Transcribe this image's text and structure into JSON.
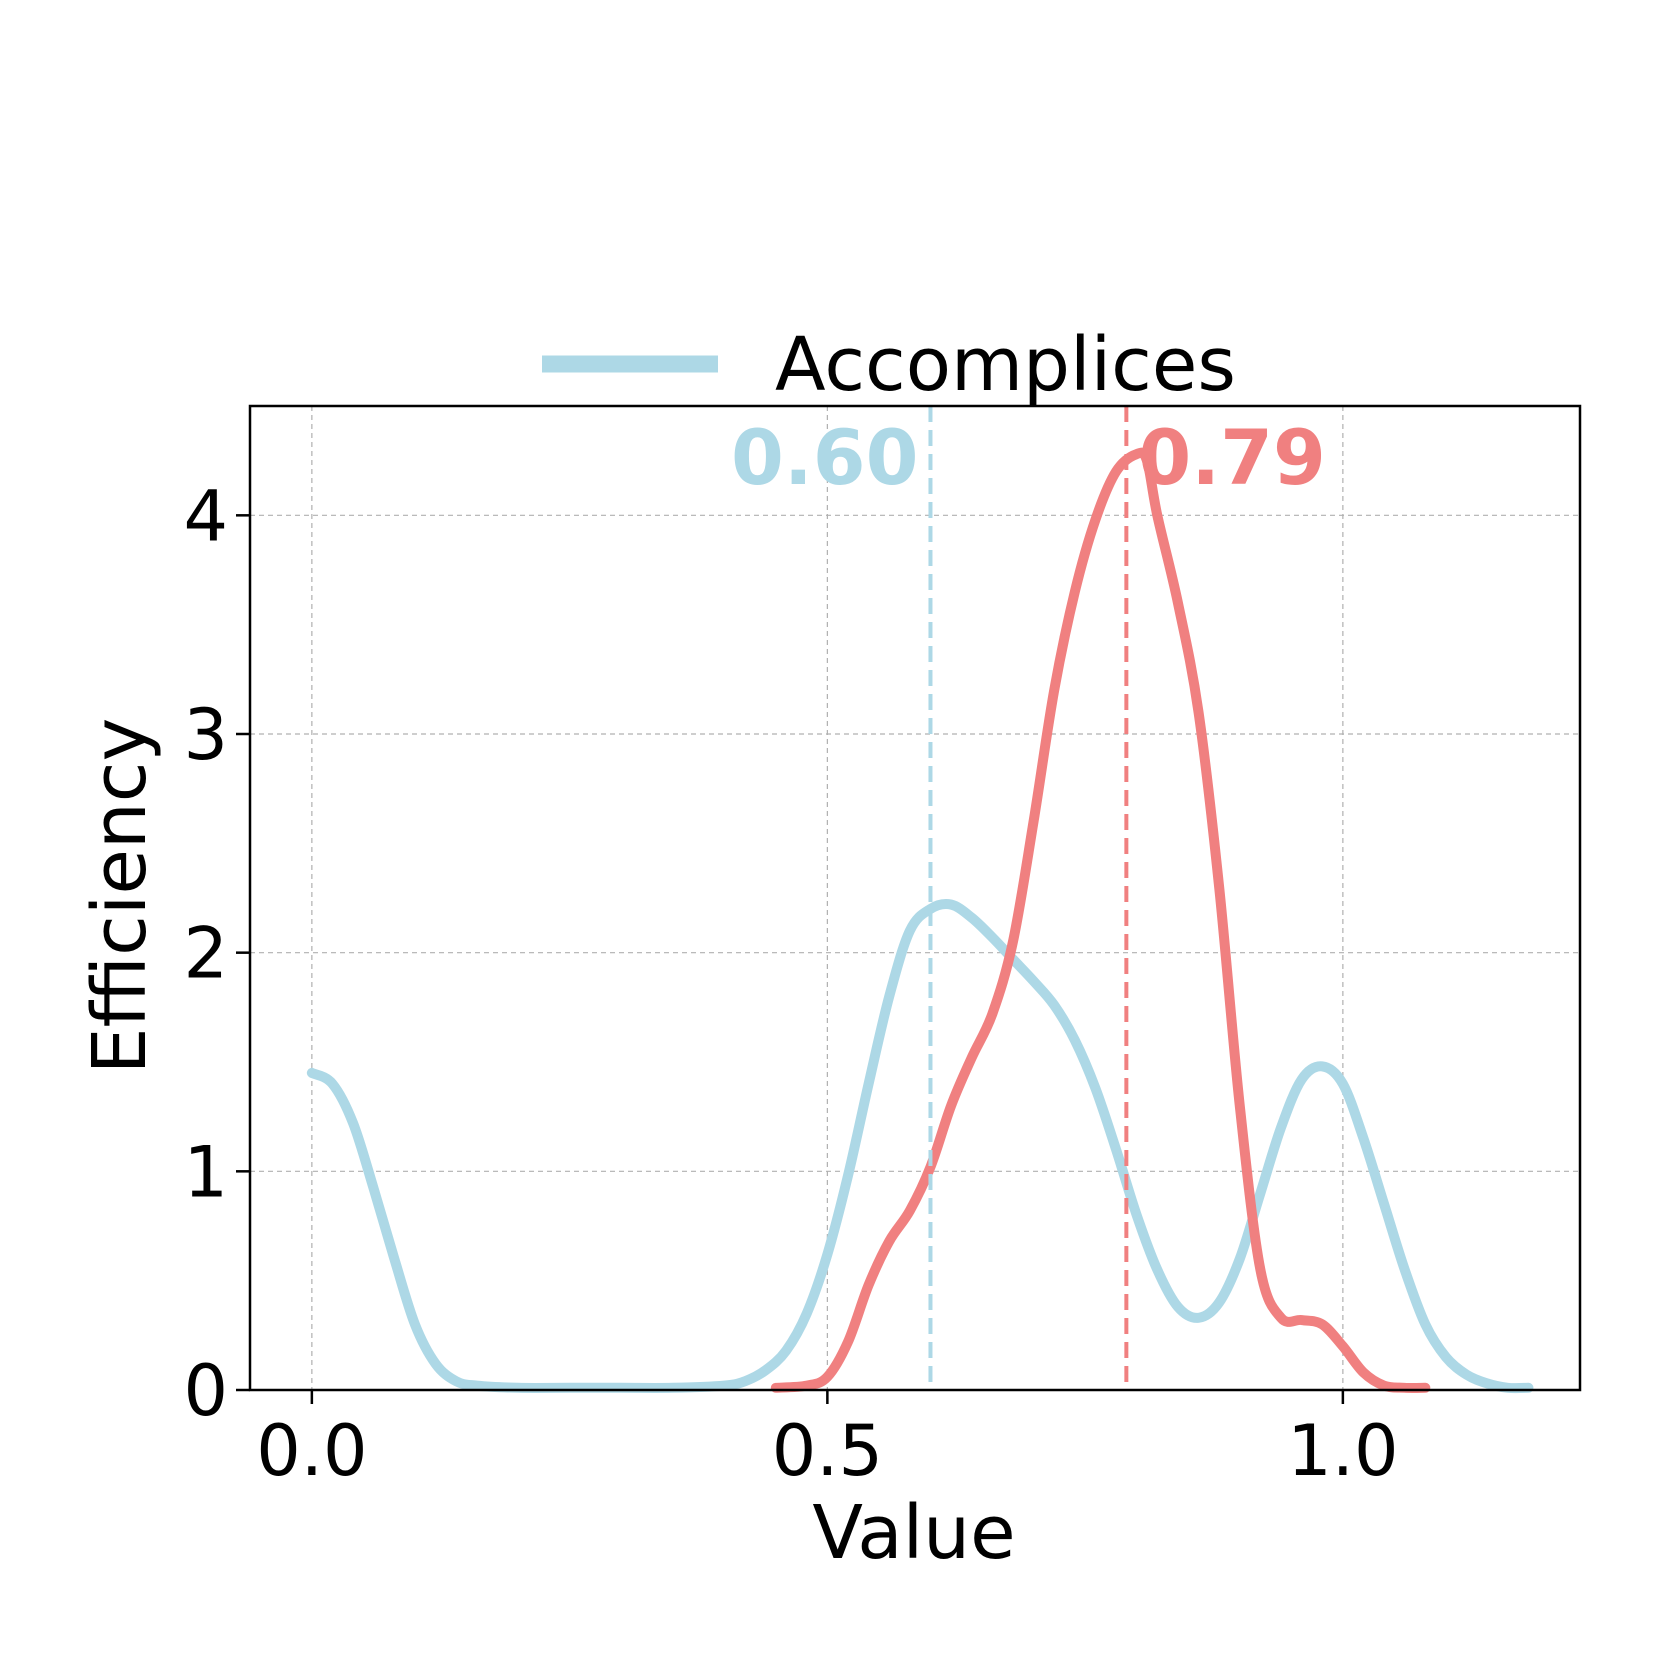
{
  "chart_data": {
    "type": "line",
    "xlabel": "Value",
    "ylabel": "Efficiency",
    "xlim": [
      -0.06,
      1.23
    ],
    "ylim": [
      0,
      4.5
    ],
    "xticks": [
      0.0,
      0.5,
      1.0
    ],
    "xtick_labels": [
      "0.0",
      "0.5",
      "1.0"
    ],
    "yticks": [
      0,
      1,
      2,
      3,
      4
    ],
    "ytick_labels": [
      "0",
      "1",
      "2",
      "3",
      "4"
    ],
    "grid": true,
    "legend_position": "top-center",
    "series": [
      {
        "name": "Accomplices",
        "color": "#add8e6",
        "x": [
          0.0,
          0.02,
          0.04,
          0.06,
          0.08,
          0.1,
          0.12,
          0.14,
          0.16,
          0.2,
          0.25,
          0.3,
          0.35,
          0.4,
          0.42,
          0.44,
          0.46,
          0.48,
          0.5,
          0.52,
          0.54,
          0.56,
          0.58,
          0.6,
          0.62,
          0.64,
          0.66,
          0.68,
          0.7,
          0.72,
          0.74,
          0.76,
          0.78,
          0.8,
          0.82,
          0.84,
          0.86,
          0.88,
          0.9,
          0.92,
          0.94,
          0.96,
          0.98,
          1.0,
          1.02,
          1.04,
          1.06,
          1.08,
          1.1,
          1.12,
          1.14,
          1.16,
          1.18
        ],
        "y": [
          1.45,
          1.4,
          1.22,
          0.92,
          0.6,
          0.3,
          0.12,
          0.04,
          0.02,
          0.01,
          0.01,
          0.01,
          0.01,
          0.02,
          0.04,
          0.09,
          0.18,
          0.35,
          0.62,
          0.98,
          1.4,
          1.8,
          2.1,
          2.2,
          2.22,
          2.16,
          2.07,
          1.97,
          1.87,
          1.76,
          1.6,
          1.38,
          1.1,
          0.8,
          0.55,
          0.38,
          0.33,
          0.4,
          0.6,
          0.9,
          1.2,
          1.42,
          1.48,
          1.4,
          1.15,
          0.85,
          0.55,
          0.3,
          0.15,
          0.07,
          0.03,
          0.01,
          0.01
        ]
      },
      {
        "color": "#f08080",
        "x": [
          0.45,
          0.48,
          0.5,
          0.52,
          0.54,
          0.56,
          0.58,
          0.6,
          0.62,
          0.64,
          0.66,
          0.68,
          0.7,
          0.72,
          0.74,
          0.76,
          0.78,
          0.8,
          0.81,
          0.82,
          0.84,
          0.86,
          0.88,
          0.9,
          0.92,
          0.94,
          0.96,
          0.98,
          1.0,
          1.02,
          1.04,
          1.06,
          1.08
        ],
        "y": [
          0.01,
          0.02,
          0.06,
          0.22,
          0.48,
          0.68,
          0.82,
          1.02,
          1.3,
          1.52,
          1.72,
          2.05,
          2.6,
          3.2,
          3.65,
          3.98,
          4.2,
          4.28,
          4.25,
          4.0,
          3.6,
          3.1,
          2.3,
          1.3,
          0.55,
          0.33,
          0.32,
          0.3,
          0.2,
          0.08,
          0.02,
          0.01,
          0.01
        ]
      }
    ],
    "vlines": [
      {
        "x": 0.6,
        "label": "0.60",
        "color": "#add8e6"
      },
      {
        "x": 0.79,
        "label": "0.79",
        "color": "#f08080"
      }
    ]
  }
}
